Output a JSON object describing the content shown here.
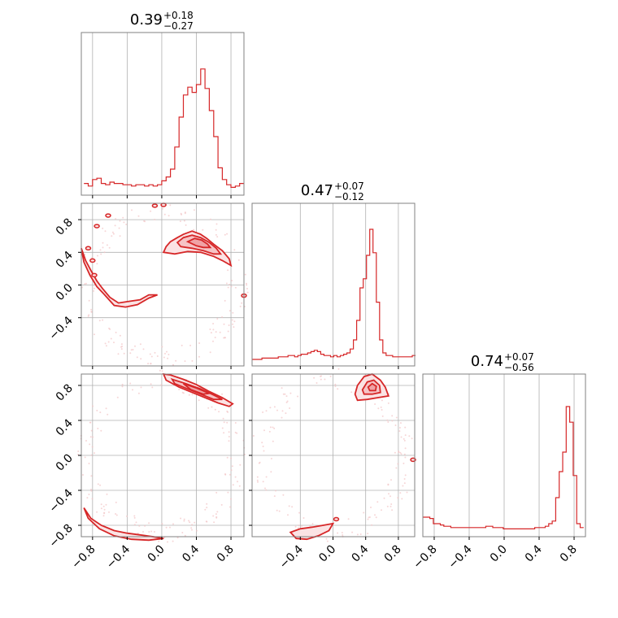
{
  "colors": {
    "series": "#d62728",
    "fill": "#f4b9bb",
    "grid": "#b0b0b0",
    "frame": "#808080"
  },
  "chart_data": {
    "type": "corner",
    "grid": true,
    "parameters": [
      {
        "title": {
          "main": "0.39",
          "sup": "+0.18",
          "sub": "−0.27"
        },
        "median": 0.39,
        "plus": 0.18,
        "minus": 0.27,
        "range": [
          -0.93,
          0.95
        ]
      },
      {
        "title": {
          "main": "0.47",
          "sup": "+0.07",
          "sub": "−0.12"
        },
        "median": 0.47,
        "plus": 0.07,
        "minus": 0.12,
        "range": [
          -0.99,
          1.0
        ]
      },
      {
        "title": {
          "main": "0.74",
          "sup": "+0.07",
          "sub": "−0.56"
        },
        "median": 0.74,
        "plus": 0.07,
        "minus": 0.56,
        "range": [
          -0.93,
          0.93
        ]
      }
    ],
    "tick_labels": {
      "p1_x": [
        "−0.8",
        "−0.4",
        "0.0",
        "0.4",
        "0.8"
      ],
      "p2_x": [
        "−0.4",
        "0.0",
        "0.4",
        "0.8"
      ],
      "p3_x": [
        "−0.8",
        "−0.4",
        "0.0",
        "0.4",
        "0.8"
      ],
      "p2_y": [
        "−0.4",
        "0.0",
        "0.4",
        "0.8"
      ],
      "p3_y": [
        "−0.8",
        "−0.4",
        "0.0",
        "0.4",
        "0.8"
      ]
    },
    "histograms": [
      {
        "param": 1,
        "x": [
          -0.875,
          -0.825,
          -0.775,
          -0.725,
          -0.675,
          -0.625,
          -0.575,
          -0.525,
          -0.475,
          -0.425,
          -0.375,
          -0.325,
          -0.275,
          -0.225,
          -0.175,
          -0.125,
          -0.075,
          -0.025,
          0.025,
          0.075,
          0.125,
          0.175,
          0.225,
          0.275,
          0.325,
          0.375,
          0.425,
          0.475,
          0.525,
          0.575,
          0.625,
          0.675,
          0.725,
          0.775,
          0.825,
          0.875,
          0.925
        ],
        "density": [
          0.04,
          0.02,
          0.07,
          0.08,
          0.04,
          0.03,
          0.05,
          0.04,
          0.04,
          0.03,
          0.03,
          0.02,
          0.03,
          0.03,
          0.02,
          0.03,
          0.02,
          0.03,
          0.06,
          0.09,
          0.15,
          0.32,
          0.55,
          0.72,
          0.78,
          0.74,
          0.8,
          0.92,
          0.77,
          0.6,
          0.4,
          0.16,
          0.07,
          0.03,
          0.01,
          0.02,
          0.04
        ]
      },
      {
        "param": 2,
        "x": [
          -0.97,
          -0.93,
          -0.89,
          -0.85,
          -0.81,
          -0.77,
          -0.73,
          -0.69,
          -0.65,
          -0.61,
          -0.57,
          -0.53,
          -0.49,
          -0.45,
          -0.41,
          -0.37,
          -0.33,
          -0.29,
          -0.25,
          -0.21,
          -0.17,
          -0.13,
          -0.09,
          -0.05,
          -0.01,
          0.03,
          0.07,
          0.11,
          0.15,
          0.19,
          0.23,
          0.27,
          0.31,
          0.35,
          0.39,
          0.43,
          0.47,
          0.51,
          0.55,
          0.59,
          0.63,
          0.67,
          0.71,
          0.75,
          0.79,
          0.83,
          0.87,
          0.91,
          0.95,
          0.99
        ],
        "density": [
          0.0,
          0.0,
          0.0,
          0.01,
          0.01,
          0.01,
          0.01,
          0.01,
          0.02,
          0.02,
          0.02,
          0.03,
          0.03,
          0.02,
          0.03,
          0.04,
          0.04,
          0.05,
          0.06,
          0.07,
          0.06,
          0.04,
          0.03,
          0.03,
          0.02,
          0.03,
          0.02,
          0.03,
          0.04,
          0.05,
          0.08,
          0.15,
          0.3,
          0.55,
          0.62,
          0.8,
          1.0,
          0.82,
          0.44,
          0.15,
          0.05,
          0.03,
          0.03,
          0.02,
          0.02,
          0.02,
          0.02,
          0.02,
          0.02,
          0.03
        ]
      },
      {
        "param": 3,
        "x": [
          -0.91,
          -0.87,
          -0.83,
          -0.79,
          -0.75,
          -0.71,
          -0.67,
          -0.63,
          -0.59,
          -0.55,
          -0.51,
          -0.47,
          -0.43,
          -0.39,
          -0.35,
          -0.31,
          -0.27,
          -0.23,
          -0.19,
          -0.15,
          -0.11,
          -0.07,
          -0.03,
          0.01,
          0.05,
          0.09,
          0.13,
          0.17,
          0.21,
          0.25,
          0.29,
          0.33,
          0.37,
          0.41,
          0.45,
          0.49,
          0.53,
          0.57,
          0.61,
          0.65,
          0.69,
          0.73,
          0.77,
          0.81,
          0.85,
          0.89
        ],
        "density": [
          0.1,
          0.1,
          0.09,
          0.05,
          0.05,
          0.04,
          0.03,
          0.03,
          0.02,
          0.02,
          0.02,
          0.02,
          0.02,
          0.02,
          0.02,
          0.02,
          0.02,
          0.02,
          0.03,
          0.03,
          0.02,
          0.02,
          0.02,
          0.01,
          0.01,
          0.01,
          0.01,
          0.01,
          0.01,
          0.01,
          0.01,
          0.01,
          0.02,
          0.02,
          0.02,
          0.03,
          0.05,
          0.07,
          0.25,
          0.45,
          0.6,
          0.95,
          0.83,
          0.42,
          0.05,
          0.02
        ]
      }
    ],
    "contours_2d": [
      {
        "x_param": 1,
        "y_param": 2,
        "levels": [
          [
            [
              0.02,
              0.4
            ],
            [
              0.05,
              0.47
            ],
            [
              0.1,
              0.53
            ],
            [
              0.18,
              0.58
            ],
            [
              0.25,
              0.62
            ],
            [
              0.35,
              0.66
            ],
            [
              0.45,
              0.62
            ],
            [
              0.52,
              0.57
            ],
            [
              0.6,
              0.5
            ],
            [
              0.7,
              0.42
            ],
            [
              0.78,
              0.32
            ],
            [
              0.8,
              0.24
            ],
            [
              0.7,
              0.3
            ],
            [
              0.6,
              0.35
            ],
            [
              0.45,
              0.4
            ],
            [
              0.3,
              0.41
            ],
            [
              0.15,
              0.38
            ],
            [
              0.02,
              0.4
            ]
          ],
          [
            [
              0.18,
              0.52
            ],
            [
              0.25,
              0.58
            ],
            [
              0.35,
              0.61
            ],
            [
              0.45,
              0.58
            ],
            [
              0.55,
              0.52
            ],
            [
              0.63,
              0.45
            ],
            [
              0.68,
              0.38
            ],
            [
              0.6,
              0.38
            ],
            [
              0.48,
              0.42
            ],
            [
              0.35,
              0.45
            ],
            [
              0.22,
              0.47
            ],
            [
              0.18,
              0.52
            ]
          ],
          [
            [
              0.3,
              0.53
            ],
            [
              0.38,
              0.57
            ],
            [
              0.46,
              0.55
            ],
            [
              0.53,
              0.5
            ],
            [
              0.56,
              0.46
            ],
            [
              0.48,
              0.46
            ],
            [
              0.4,
              0.48
            ],
            [
              0.3,
              0.53
            ]
          ]
        ],
        "outer_ring": [
          [
            -0.93,
            0.45
          ],
          [
            -0.88,
            0.3
          ],
          [
            -0.82,
            0.18
          ],
          [
            -0.75,
            0.05
          ],
          [
            -0.68,
            -0.05
          ],
          [
            -0.6,
            -0.15
          ],
          [
            -0.5,
            -0.22
          ],
          [
            -0.38,
            -0.2
          ],
          [
            -0.25,
            -0.18
          ],
          [
            -0.15,
            -0.12
          ],
          [
            -0.05,
            -0.12
          ],
          [
            -0.15,
            -0.16
          ],
          [
            -0.28,
            -0.24
          ],
          [
            -0.42,
            -0.27
          ],
          [
            -0.55,
            -0.25
          ],
          [
            -0.66,
            -0.12
          ],
          [
            -0.75,
            -0.02
          ],
          [
            -0.83,
            0.12
          ],
          [
            -0.9,
            0.28
          ],
          [
            -0.93,
            0.45
          ]
        ],
        "islands": [
          [
            -0.75,
            0.72
          ],
          [
            -0.62,
            0.85
          ],
          [
            -0.08,
            0.97
          ],
          [
            0.02,
            0.98
          ],
          [
            0.95,
            -0.13
          ],
          [
            -0.85,
            0.45
          ],
          [
            -0.8,
            0.3
          ],
          [
            -0.78,
            0.12
          ]
        ]
      },
      {
        "x_param": 1,
        "y_param": 3,
        "levels": [
          [
            [
              0.02,
              0.93
            ],
            [
              0.1,
              0.92
            ],
            [
              0.25,
              0.87
            ],
            [
              0.4,
              0.81
            ],
            [
              0.55,
              0.73
            ],
            [
              0.7,
              0.66
            ],
            [
              0.82,
              0.59
            ],
            [
              0.78,
              0.56
            ],
            [
              0.65,
              0.6
            ],
            [
              0.5,
              0.66
            ],
            [
              0.35,
              0.72
            ],
            [
              0.2,
              0.78
            ],
            [
              0.05,
              0.86
            ],
            [
              0.02,
              0.93
            ]
          ],
          [
            [
              0.12,
              0.87
            ],
            [
              0.28,
              0.82
            ],
            [
              0.45,
              0.76
            ],
            [
              0.6,
              0.69
            ],
            [
              0.7,
              0.64
            ],
            [
              0.6,
              0.64
            ],
            [
              0.45,
              0.7
            ],
            [
              0.3,
              0.76
            ],
            [
              0.15,
              0.82
            ],
            [
              0.12,
              0.87
            ]
          ],
          [
            [
              0.25,
              0.82
            ],
            [
              0.4,
              0.77
            ],
            [
              0.55,
              0.71
            ],
            [
              0.48,
              0.7
            ],
            [
              0.34,
              0.75
            ],
            [
              0.25,
              0.82
            ]
          ]
        ],
        "outer_ring": [
          [
            -0.9,
            -0.6
          ],
          [
            -0.82,
            -0.72
          ],
          [
            -0.7,
            -0.8
          ],
          [
            -0.55,
            -0.86
          ],
          [
            -0.4,
            -0.89
          ],
          [
            -0.25,
            -0.91
          ],
          [
            -0.1,
            -0.93
          ],
          [
            0.02,
            -0.95
          ],
          [
            -0.15,
            -0.97
          ],
          [
            -0.35,
            -0.96
          ],
          [
            -0.55,
            -0.92
          ],
          [
            -0.72,
            -0.84
          ],
          [
            -0.85,
            -0.72
          ],
          [
            -0.9,
            -0.6
          ]
        ]
      },
      {
        "x_param": 2,
        "y_param": 3,
        "levels": [
          [
            [
              0.27,
              0.7
            ],
            [
              0.3,
              0.8
            ],
            [
              0.38,
              0.9
            ],
            [
              0.48,
              0.93
            ],
            [
              0.58,
              0.86
            ],
            [
              0.64,
              0.78
            ],
            [
              0.68,
              0.68
            ],
            [
              0.55,
              0.66
            ],
            [
              0.42,
              0.64
            ],
            [
              0.3,
              0.63
            ],
            [
              0.27,
              0.7
            ]
          ],
          [
            [
              0.36,
              0.75
            ],
            [
              0.42,
              0.84
            ],
            [
              0.5,
              0.86
            ],
            [
              0.57,
              0.8
            ],
            [
              0.58,
              0.72
            ],
            [
              0.48,
              0.7
            ],
            [
              0.38,
              0.7
            ],
            [
              0.36,
              0.75
            ]
          ],
          [
            [
              0.43,
              0.78
            ],
            [
              0.48,
              0.82
            ],
            [
              0.53,
              0.79
            ],
            [
              0.52,
              0.74
            ],
            [
              0.45,
              0.74
            ],
            [
              0.43,
              0.78
            ]
          ]
        ],
        "outer_ring": [
          [
            -0.52,
            -0.88
          ],
          [
            -0.4,
            -0.84
          ],
          [
            -0.25,
            -0.82
          ],
          [
            -0.12,
            -0.8
          ],
          [
            0.0,
            -0.78
          ],
          [
            -0.05,
            -0.86
          ],
          [
            -0.18,
            -0.92
          ],
          [
            -0.32,
            -0.96
          ],
          [
            -0.45,
            -0.95
          ],
          [
            -0.52,
            -0.88
          ]
        ],
        "islands": [
          [
            0.04,
            -0.73
          ],
          [
            0.98,
            -0.05
          ]
        ]
      }
    ]
  }
}
